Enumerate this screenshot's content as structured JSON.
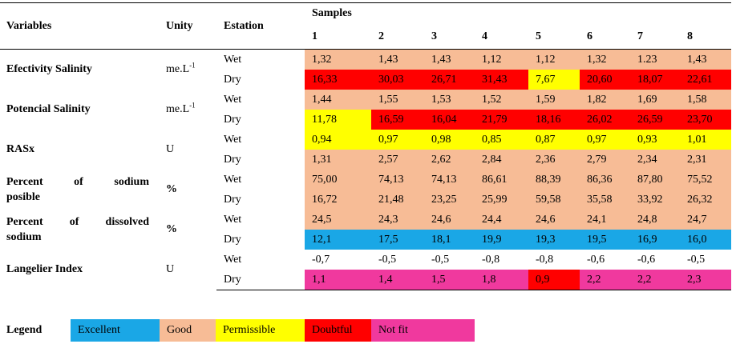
{
  "headers": {
    "variables": "Variables",
    "unity": "Unity",
    "estation": "Estation",
    "samples": "Samples",
    "sample_numbers": [
      "1",
      "2",
      "3",
      "4",
      "5",
      "6",
      "7",
      "8"
    ]
  },
  "stations": {
    "wet": "Wet",
    "dry": "Dry"
  },
  "rows": [
    {
      "variable": "Efectivity Salinity",
      "unit_base": "me.L",
      "unit_sup": "-1",
      "wet": [
        "1,32",
        "1,43",
        "1,43",
        "1,12",
        "1,12",
        "1,32",
        "1.23",
        "1,43"
      ],
      "dry": [
        "16,33",
        "30,03",
        "26,71",
        "31,43",
        "7,67",
        "20,60",
        "18,07",
        "22,61"
      ]
    },
    {
      "variable": "Potencial Salinity",
      "unit_base": "me.L",
      "unit_sup": "-1",
      "wet": [
        "1,44",
        "1,55",
        "1,53",
        "1,52",
        "1,59",
        "1,82",
        "1,69",
        "1,58"
      ],
      "dry": [
        "11,78",
        "16,59",
        "16,04",
        "21,79",
        "18,16",
        "26,02",
        "26,59",
        "23,70"
      ]
    },
    {
      "variable": "RASx",
      "unit": "U",
      "wet": [
        "0,94",
        "0,97",
        "0,98",
        "0,85",
        "0,87",
        "0,97",
        "0,93",
        "1,01"
      ],
      "dry": [
        "1,31",
        "2,57",
        "2,62",
        "2,84",
        "2,36",
        "2,79",
        "2,34",
        "2,31"
      ]
    },
    {
      "variable_line1": "Percent of sodium",
      "variable_line2": "posible",
      "unit": "%",
      "wet": [
        "75,00",
        "74,13",
        "74,13",
        "86,61",
        "88,39",
        "86,36",
        "87,80",
        "75,52"
      ],
      "dry": [
        "16,72",
        "21,48",
        "23,25",
        "25,99",
        "59,58",
        "35,58",
        "33,92",
        "26,32"
      ]
    },
    {
      "variable_line1": "Percent of dissolved",
      "variable_line2": "sodium",
      "unit": "%",
      "wet": [
        "24,5",
        "24,3",
        "24,6",
        "24,4",
        "24,6",
        "24,1",
        "24,8",
        "24,7"
      ],
      "dry": [
        "12,1",
        "17,5",
        "18,1",
        "19,9",
        "19,3",
        "19,5",
        "16,9",
        "16,0"
      ]
    },
    {
      "variable": "Langelier Index",
      "unit": "U",
      "wet": [
        "-0,7",
        "-0,5",
        "-0,5",
        "-0,8",
        "-0,8",
        "-0,6",
        "-0,6",
        "-0,5"
      ],
      "dry": [
        "1,1",
        "1,4",
        "1,5",
        "1,8",
        "0,9",
        "2,2",
        "2,2",
        "2,3"
      ]
    }
  ],
  "legend": {
    "label": "Legend",
    "excellent": "Excellent",
    "good": "Good",
    "permissible": "Permissible",
    "doubtful": "Doubtful",
    "not_fit": "Not fit"
  },
  "colors": {
    "excellent": "#1aa7e6",
    "good": "#f7bc96",
    "permissible": "#ffff00",
    "doubtful": "#ff0000",
    "not_fit": "#f0399e"
  }
}
